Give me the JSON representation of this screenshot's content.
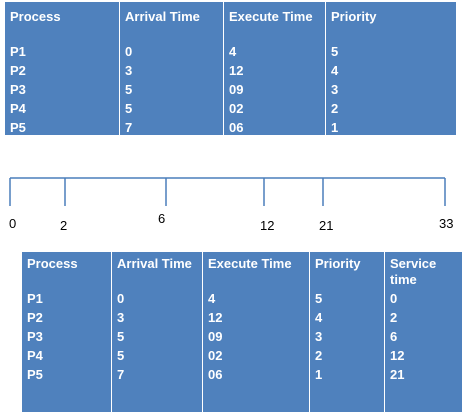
{
  "table1": {
    "headers": [
      "Process",
      "Arrival Time",
      "Execute Time",
      "Priority"
    ],
    "rows": [
      [
        "P1",
        "0",
        "4",
        "5"
      ],
      [
        "P2",
        "3",
        "12",
        "4"
      ],
      [
        "P3",
        "5",
        "09",
        "3"
      ],
      [
        "P4",
        "5",
        "02",
        "2"
      ],
      [
        "P5",
        "7",
        "06",
        "1"
      ]
    ]
  },
  "timeline": {
    "ticks": [
      "0",
      "2",
      "6",
      "12",
      "21",
      "33"
    ]
  },
  "table2": {
    "headers": [
      "Process",
      "Arrival Time",
      "Execute Time",
      "Priority",
      "Service time"
    ],
    "rows": [
      [
        "P1",
        "0",
        "4",
        "5",
        "0"
      ],
      [
        "P2",
        "3",
        "12",
        "4",
        "2"
      ],
      [
        "P3",
        "5",
        "09",
        "3",
        "6"
      ],
      [
        "P4",
        "5",
        "02",
        "2",
        "12"
      ],
      [
        "P5",
        "7",
        "06",
        "1",
        "21"
      ]
    ]
  }
}
